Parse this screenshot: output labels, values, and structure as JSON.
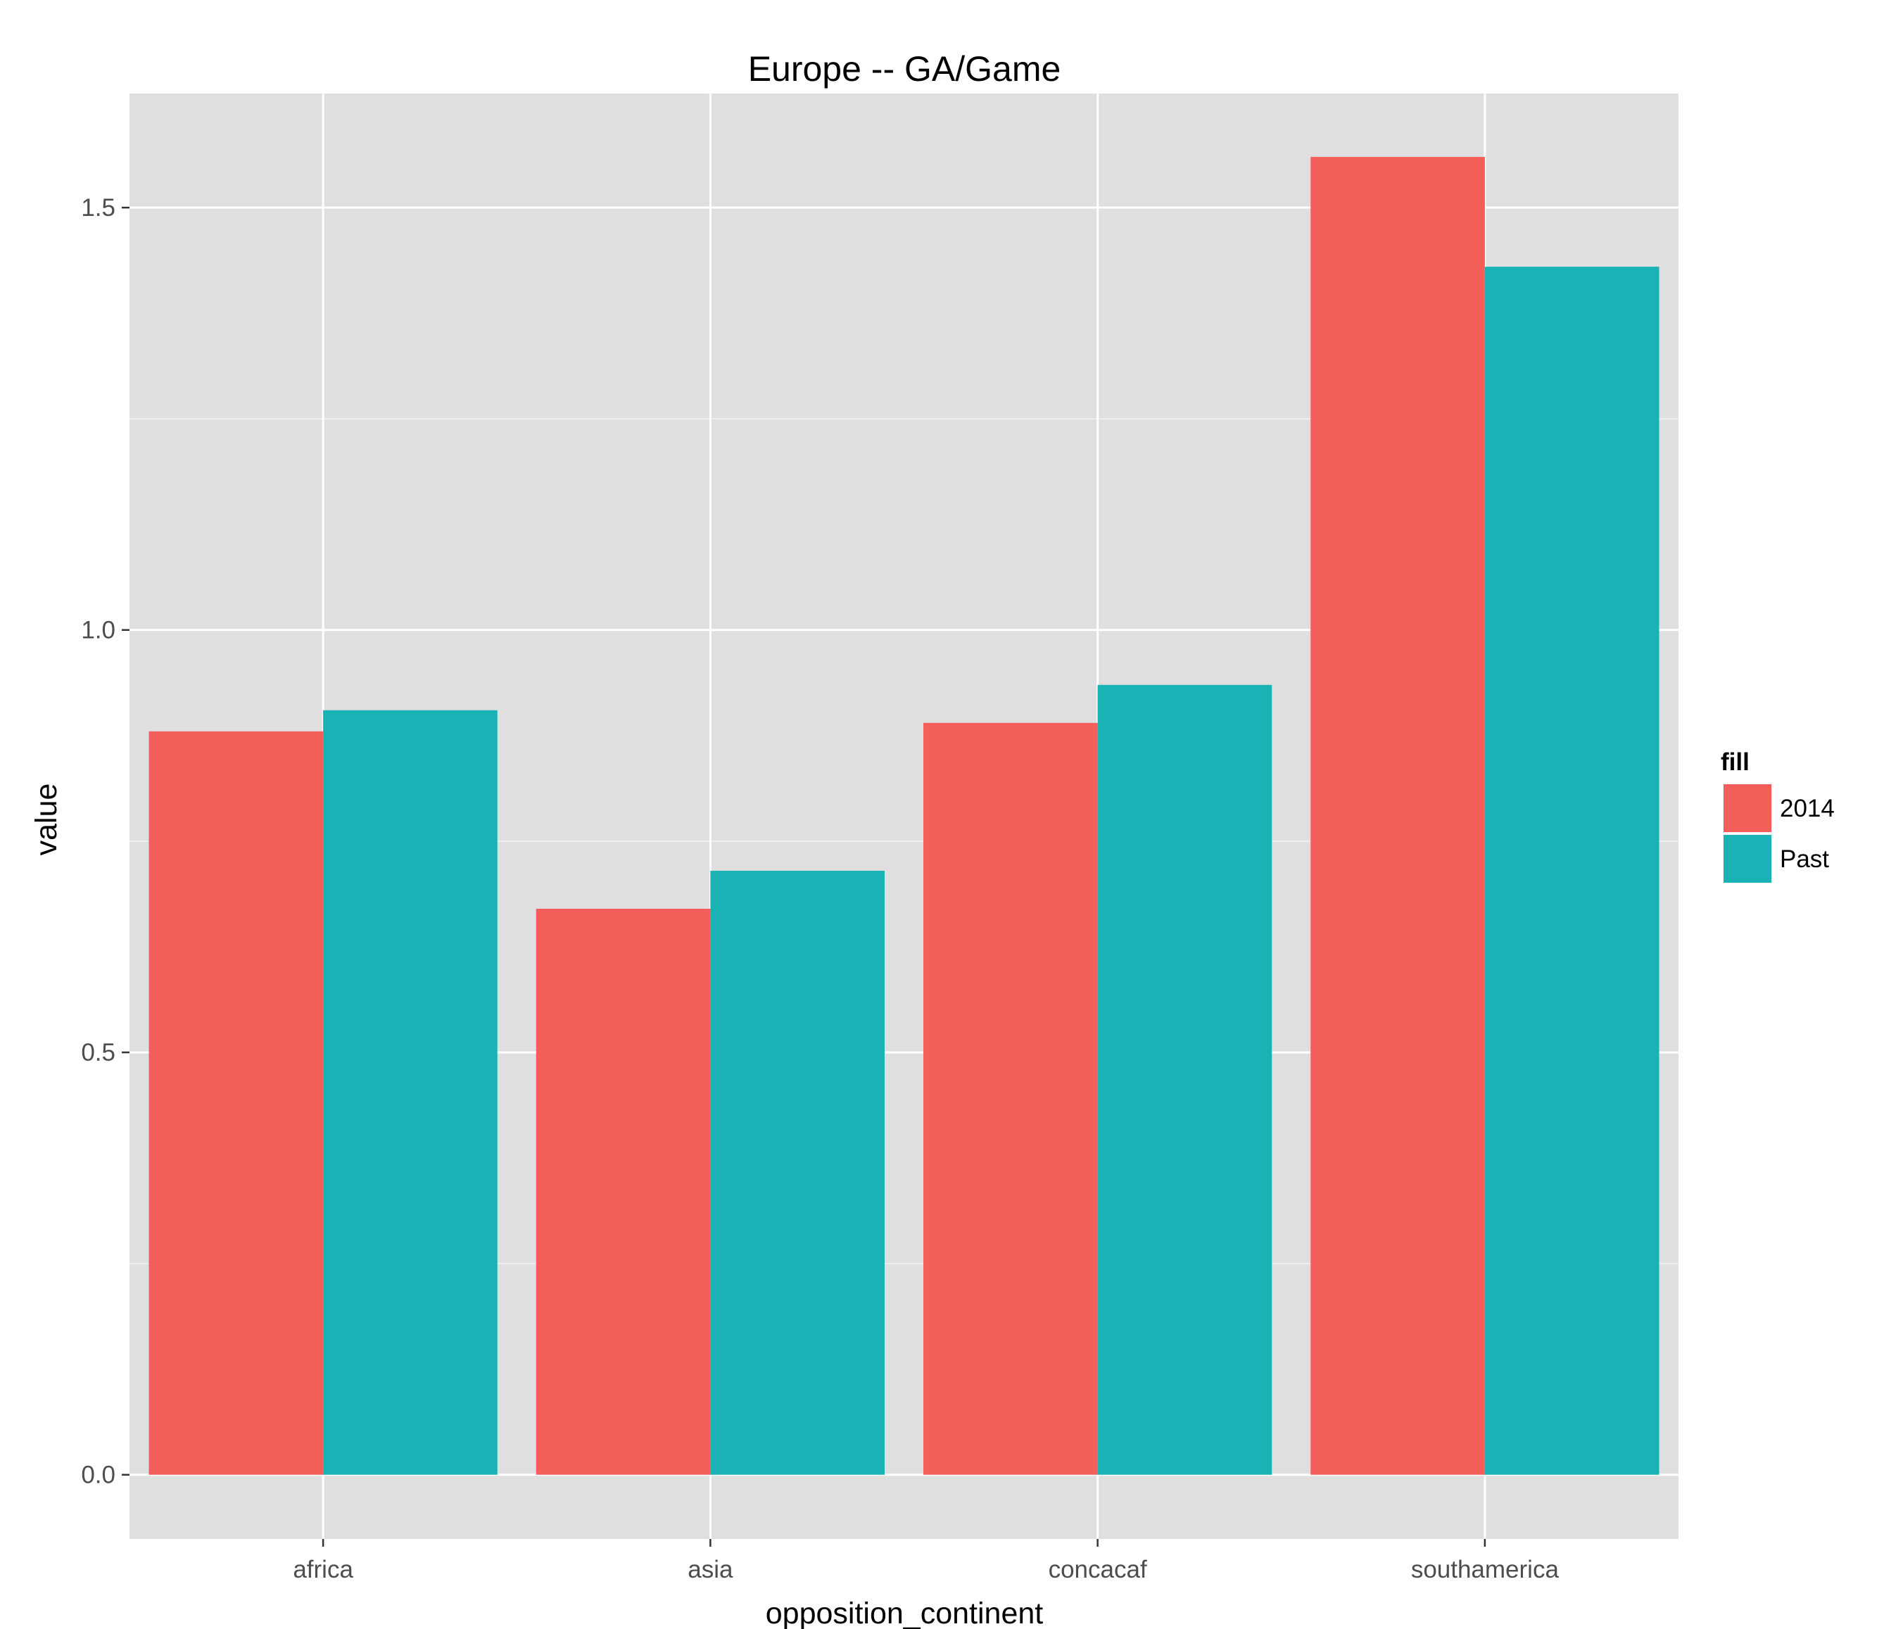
{
  "chart_data": {
    "type": "bar",
    "title": "Europe -- GA/Game",
    "xlabel": "opposition_continent",
    "ylabel": "value",
    "categories": [
      "africa",
      "asia",
      "concacaf",
      "southamerica"
    ],
    "series": [
      {
        "name": "2014",
        "values": [
          0.88,
          0.67,
          0.89,
          1.56
        ]
      },
      {
        "name": "Past",
        "values": [
          0.905,
          0.715,
          0.935,
          1.43
        ]
      }
    ],
    "ylim": [
      -0.076,
      1.635
    ],
    "yticks": [
      0.0,
      0.5,
      1.0,
      1.5
    ],
    "ytick_labels": [
      "0.0",
      "0.5",
      "1.0",
      "1.5"
    ],
    "grid": true,
    "legend": {
      "title": "fill",
      "position": "right"
    },
    "colors": {
      "2014": "#F35E5A",
      "Past": "#19B3B6",
      "panel": "#DFDFDF",
      "grid": "#FFFFFF"
    }
  }
}
